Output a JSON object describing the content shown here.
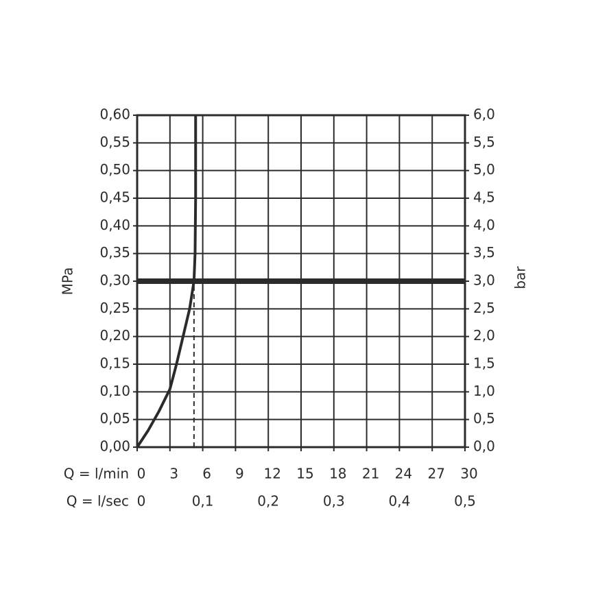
{
  "chart_data": {
    "type": "line",
    "x": [
      0,
      1,
      2,
      3,
      3.6,
      4.2,
      4.8,
      5.2,
      5.3,
      5.35,
      5.35
    ],
    "values": [
      0,
      0.03,
      0.065,
      0.105,
      0.15,
      0.2,
      0.25,
      0.3,
      0.35,
      0.45,
      0.6
    ],
    "color": "#2b2b2b",
    "hline": 0.3,
    "vline": 5.2,
    "xlabel": "Q = l/min",
    "x2label": "Q = l/sec",
    "ylabel": "MPa",
    "y2label": "bar",
    "xlim": [
      0,
      30
    ],
    "xticks": [
      0,
      3,
      6,
      9,
      12,
      15,
      18,
      21,
      24,
      27,
      30
    ],
    "x2lim": [
      0,
      0.5
    ],
    "x2ticks": [
      0,
      {
        "value": 0.1,
        "label": "0,1"
      },
      {
        "value": 0.2,
        "label": "0,2"
      },
      {
        "value": 0.3,
        "label": "0,3"
      },
      {
        "value": 0.4,
        "label": "0,4"
      },
      {
        "value": 0.5,
        "label": "0,5"
      }
    ],
    "ylim": [
      0,
      0.6
    ],
    "yticks": [
      {
        "value": 0,
        "label": "0,00"
      },
      {
        "value": 0.05,
        "label": "0,05"
      },
      {
        "value": 0.1,
        "label": "0,10"
      },
      {
        "value": 0.15,
        "label": "0,15"
      },
      {
        "value": 0.2,
        "label": "0,20"
      },
      {
        "value": 0.25,
        "label": "0,25"
      },
      {
        "value": 0.3,
        "label": "0,30"
      },
      {
        "value": 0.35,
        "label": "0,35"
      },
      {
        "value": 0.4,
        "label": "0,40"
      },
      {
        "value": 0.45,
        "label": "0,45"
      },
      {
        "value": 0.5,
        "label": "0,50"
      },
      {
        "value": 0.55,
        "label": "0,55"
      },
      {
        "value": 0.6,
        "label": "0,60"
      }
    ],
    "y2lim": [
      0,
      6
    ],
    "y2ticks": [
      {
        "value": 0,
        "label": "0,0"
      },
      {
        "value": 0.5,
        "label": "0,5"
      },
      {
        "value": 1,
        "label": "1,0"
      },
      {
        "value": 1.5,
        "label": "1,5"
      },
      {
        "value": 2,
        "label": "2,0"
      },
      {
        "value": 2.5,
        "label": "2,5"
      },
      {
        "value": 3,
        "label": "3,0"
      },
      {
        "value": 3.5,
        "label": "3,5"
      },
      {
        "value": 4,
        "label": "4,0"
      },
      {
        "value": 4.5,
        "label": "4,5"
      },
      {
        "value": 5,
        "label": "5,0"
      },
      {
        "value": 5.5,
        "label": "5,5"
      },
      {
        "value": 6,
        "label": "6,0"
      }
    ],
    "grid": true
  }
}
